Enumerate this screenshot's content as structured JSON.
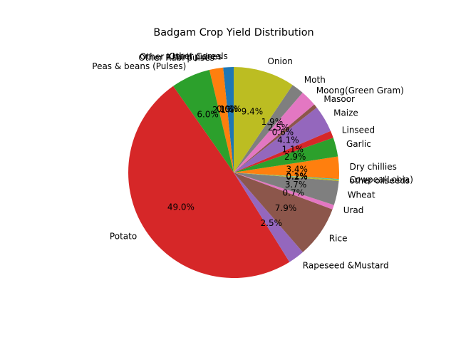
{
  "chart_data": {
    "type": "pie",
    "title": "Badgam Crop Yield Distribution",
    "start_angle": 90,
    "direction": "counterclockwise",
    "slices": [
      {
        "label": "Other Cereals",
        "value": 1.6,
        "pct": "1.6%",
        "color": "#1f77b4"
      },
      {
        "label": "Other Kharif pulses",
        "value": 0.0,
        "pct": "0.0%",
        "color": "#ff7f0e"
      },
      {
        "label": "Other Rabi pulses",
        "value": 2.1,
        "pct": "2.1%",
        "color": "#ff7f0e"
      },
      {
        "label": "Peas & beans (Pulses)",
        "value": 6.0,
        "pct": "6.0%",
        "color": "#2ca02c"
      },
      {
        "label": "Potato",
        "value": 49.0,
        "pct": "49.0%",
        "color": "#d62728"
      },
      {
        "label": "Rapeseed &Mustard",
        "value": 2.5,
        "pct": "2.5%",
        "color": "#9467bd"
      },
      {
        "label": "Rice",
        "value": 7.9,
        "pct": "7.9%",
        "color": "#8c564b"
      },
      {
        "label": "Urad",
        "value": 0.7,
        "pct": "0.7%",
        "color": "#e377c2"
      },
      {
        "label": "Wheat",
        "value": 3.7,
        "pct": "3.7%",
        "color": "#7f7f7f"
      },
      {
        "label": "other oilseeds",
        "value": 0.2,
        "pct": "0.2%",
        "color": "#bcbd22"
      },
      {
        "label": "Cowpea(Lobia)",
        "value": 0.1,
        "pct": "0.1%",
        "color": "#17becf"
      },
      {
        "label": "Dry chillies",
        "value": 3.4,
        "pct": "3.4%",
        "color": "#ff7f0e"
      },
      {
        "label": "Garlic",
        "value": 2.9,
        "pct": "2.9%",
        "color": "#2ca02c"
      },
      {
        "label": "Linseed",
        "value": 1.1,
        "pct": "1.1%",
        "color": "#d62728"
      },
      {
        "label": "Maize",
        "value": 4.1,
        "pct": "4.1%",
        "color": "#9467bd"
      },
      {
        "label": "Masoor",
        "value": 0.6,
        "pct": "0.6%",
        "color": "#8c564b"
      },
      {
        "label": "Moong(Green Gram)",
        "value": 2.5,
        "pct": "2.5%",
        "color": "#e377c2"
      },
      {
        "label": "Moth",
        "value": 1.9,
        "pct": "1.9%",
        "color": "#7f7f7f"
      },
      {
        "label": "Onion",
        "value": 9.4,
        "pct": "9.4%",
        "color": "#bcbd22"
      }
    ]
  }
}
